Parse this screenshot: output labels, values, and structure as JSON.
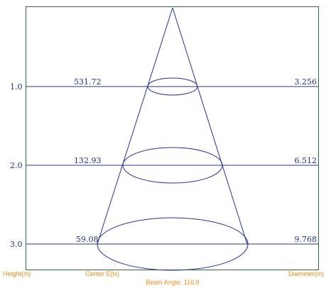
{
  "colors": {
    "frame": "#2f6b3a",
    "lines": "#24348f",
    "values": "#1f2f8a",
    "footer": "#f28c1a"
  },
  "chart_data": {
    "type": "diagram",
    "rows": [
      {
        "height": "1.0",
        "center": "531.72",
        "diameter": "3.256"
      },
      {
        "height": "2.0",
        "center": "132.93",
        "diameter": "6.512"
      },
      {
        "height": "3.0",
        "center": "59.08",
        "diameter": "9.768"
      }
    ],
    "labels": {
      "height": "Height(m)",
      "center": "Center E(lx)",
      "diameter": "Diameter(m)",
      "beam_angle": "Beam Angle: 116.9"
    }
  }
}
